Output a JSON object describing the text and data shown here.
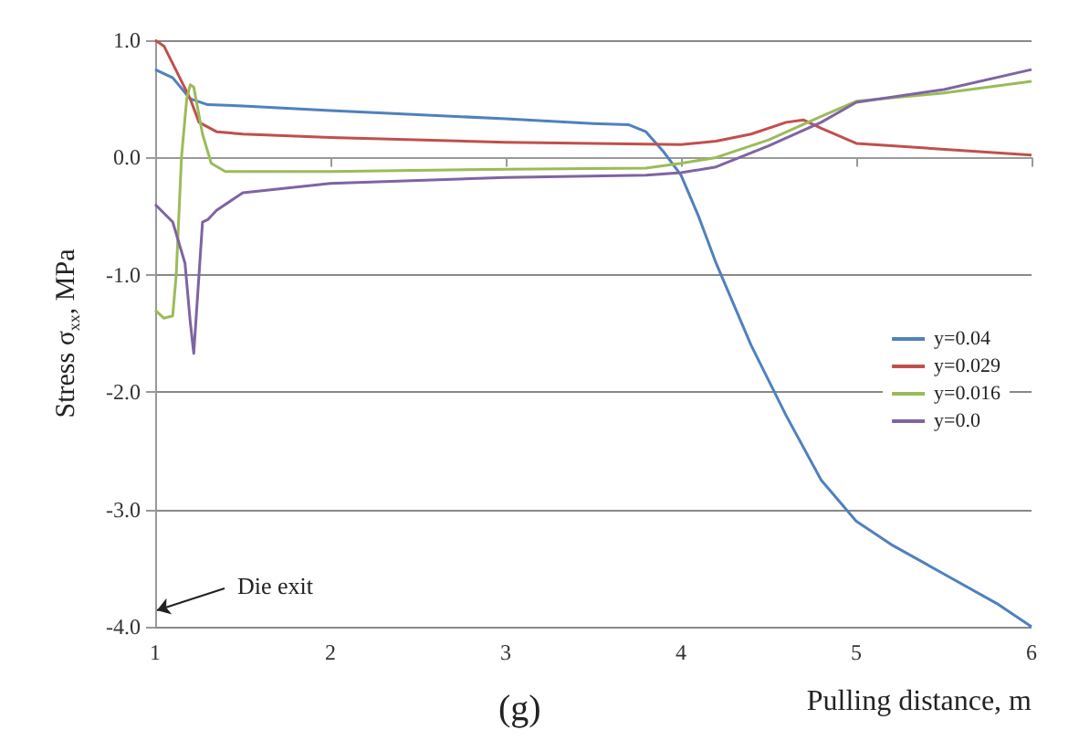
{
  "chart_data": {
    "type": "line",
    "xlabel": "Pulling distance, m",
    "ylabel": "Stress σ$_{xx}$, MPa",
    "annotations": [
      "Die exit",
      "(g)"
    ],
    "xlim": [
      1,
      6
    ],
    "xticks": [
      1,
      2,
      3,
      4,
      5,
      6
    ],
    "ylim": [
      -4,
      1
    ],
    "yticks": [
      {
        "value": 1,
        "label": "1.0"
      },
      {
        "value": 0,
        "label": "0.0"
      },
      {
        "value": -1,
        "label": "-1.0"
      },
      {
        "value": -2,
        "label": "-2.0"
      },
      {
        "value": -3,
        "label": "-3.0"
      },
      {
        "value": -4,
        "label": "-4.0"
      }
    ],
    "grid": "y",
    "legend": "right",
    "marker": "none",
    "line_style": "solid",
    "series": [
      {
        "name": "y=0.04",
        "color": "#4f81bd",
        "x": [
          1,
          1.1,
          1.2,
          1.3,
          1.5,
          2,
          3,
          3.5,
          3.7,
          3.8,
          3.9,
          4,
          4.1,
          4.2,
          4.4,
          4.6,
          4.8,
          5,
          5.2,
          5.5,
          5.8,
          6
        ],
        "values": [
          0.75,
          0.68,
          0.5,
          0.45,
          0.44,
          0.4,
          0.33,
          0.29,
          0.28,
          0.22,
          0.05,
          -0.15,
          -0.5,
          -0.9,
          -1.6,
          -2.2,
          -2.75,
          -3.1,
          -3.3,
          -3.55,
          -3.8,
          -4.0
        ]
      },
      {
        "name": "y=0.029",
        "color": "#c0504d",
        "x": [
          1,
          1.05,
          1.1,
          1.2,
          1.25,
          1.35,
          1.5,
          2,
          3,
          4,
          4.2,
          4.4,
          4.6,
          4.7,
          4.8,
          5,
          5.2,
          6
        ],
        "values": [
          1.0,
          0.95,
          0.8,
          0.5,
          0.3,
          0.22,
          0.2,
          0.17,
          0.13,
          0.11,
          0.14,
          0.2,
          0.3,
          0.32,
          0.25,
          0.12,
          0.1,
          0.02
        ]
      },
      {
        "name": "y=0.016",
        "color": "#9bbb59",
        "x": [
          1,
          1.05,
          1.1,
          1.12,
          1.15,
          1.18,
          1.2,
          1.22,
          1.27,
          1.32,
          1.4,
          2,
          3,
          3.8,
          4,
          4.2,
          4.5,
          4.8,
          5,
          5.5,
          6
        ],
        "values": [
          -1.3,
          -1.37,
          -1.35,
          -1.0,
          0.0,
          0.5,
          0.62,
          0.6,
          0.2,
          -0.05,
          -0.12,
          -0.12,
          -0.1,
          -0.09,
          -0.05,
          0.0,
          0.15,
          0.35,
          0.48,
          0.55,
          0.65
        ]
      },
      {
        "name": "y=0.0",
        "color": "#7f64a2",
        "x": [
          1,
          1.1,
          1.17,
          1.2,
          1.22,
          1.25,
          1.27,
          1.3,
          1.35,
          1.5,
          2,
          3,
          3.8,
          4,
          4.2,
          4.5,
          4.8,
          5,
          5.5,
          6
        ],
        "values": [
          -0.4,
          -0.55,
          -0.9,
          -1.4,
          -1.67,
          -1.0,
          -0.55,
          -0.53,
          -0.45,
          -0.3,
          -0.22,
          -0.17,
          -0.15,
          -0.13,
          -0.08,
          0.1,
          0.3,
          0.47,
          0.58,
          0.75
        ]
      }
    ]
  }
}
